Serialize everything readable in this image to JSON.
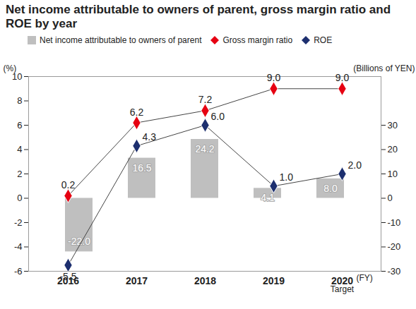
{
  "chart_data": {
    "type": "combo",
    "title": "Net income attributable to owners of parent, gross margin ratio and ROE by year",
    "categories": [
      "2016",
      "2017",
      "2018",
      "2019",
      "2020"
    ],
    "x_label": "(FY)",
    "annotations": [
      {
        "text": "Target",
        "category": "2020"
      }
    ],
    "ylabel": "(%)",
    "y2label": "(Billions of YEN)",
    "ylim": [
      -6,
      10
    ],
    "yticks": [
      -6,
      -4,
      -2,
      0,
      2,
      4,
      6,
      8,
      10
    ],
    "y2lim": [
      -30,
      50
    ],
    "y2ticks": [
      -30,
      -20,
      -10,
      0,
      10,
      20,
      30
    ],
    "grid": false,
    "data_labels": true,
    "legend": "top",
    "series": [
      {
        "name": "Net income attributable to owners of parent",
        "type": "bar",
        "axis": "y2",
        "color": "#bfbfbf",
        "values": [
          -22.0,
          16.5,
          24.2,
          4.1,
          8.0
        ],
        "value_labels": [
          "-22.0",
          "16.5",
          "24.2",
          "4.1",
          "8.0"
        ]
      },
      {
        "name": "Gross margin ratio",
        "type": "line",
        "color": "#e60012",
        "marker": "diamond",
        "values": [
          0.2,
          6.2,
          7.2,
          9.0,
          9.0
        ],
        "value_labels": [
          "0.2",
          "6.2",
          "7.2",
          "9.0",
          "9.0"
        ]
      },
      {
        "name": "ROE",
        "type": "line",
        "color": "#1d2f6f",
        "marker": "diamond",
        "values": [
          -5.5,
          4.3,
          6.0,
          1.0,
          2.0
        ],
        "value_labels": [
          "-5.5",
          "4.3",
          "6.0",
          "1.0",
          "2.0"
        ]
      }
    ]
  }
}
